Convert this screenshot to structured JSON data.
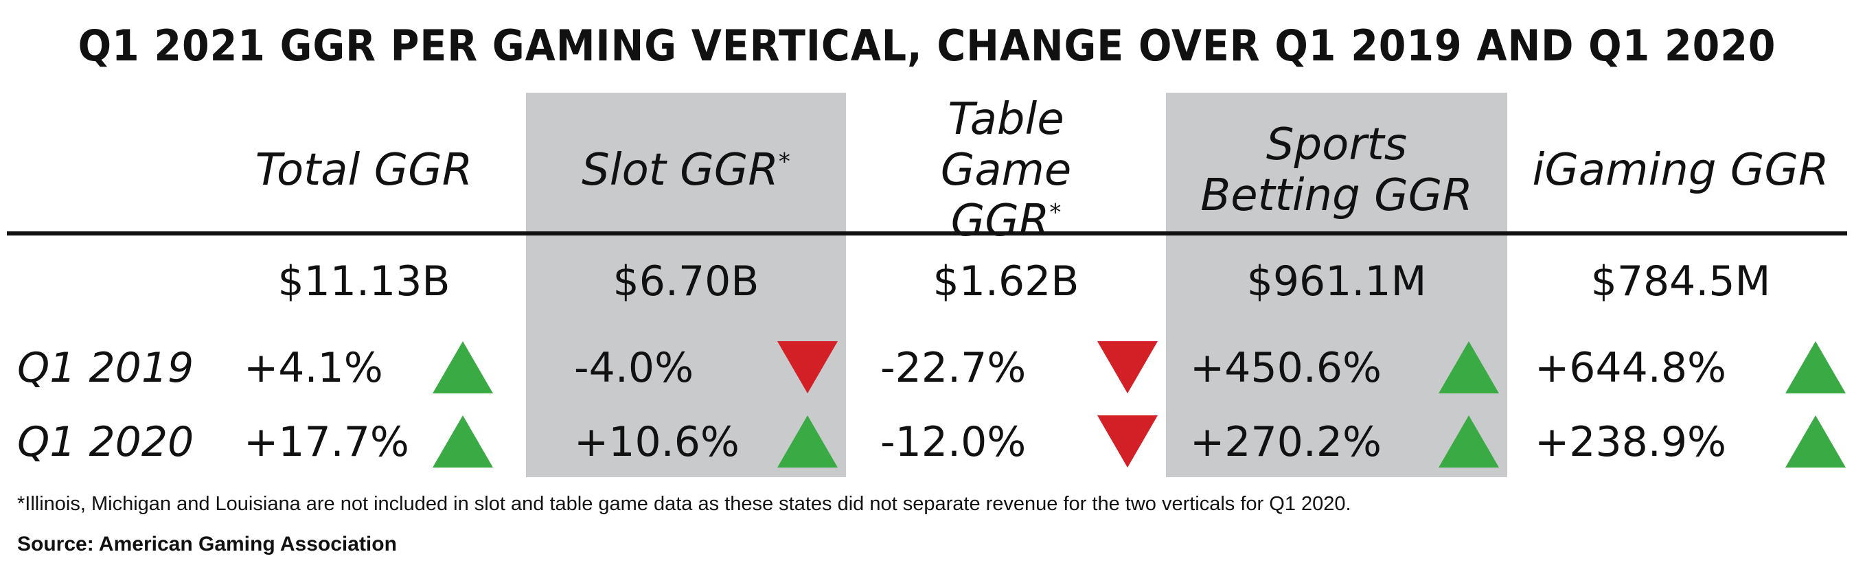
{
  "chart_data": {
    "type": "table",
    "title": "Q1 2021 GGR PER GAMING VERTICAL, CHANGE OVER Q1 2019 AND Q1 2020",
    "columns": [
      {
        "label": "Total GGR",
        "note": "",
        "shaded": false,
        "total": "$11.13B",
        "changes": [
          {
            "text": "+4.1%",
            "value": 4.1,
            "direction": "up"
          },
          {
            "text": "+17.7%",
            "value": 17.7,
            "direction": "up"
          }
        ]
      },
      {
        "label": "Slot GGR",
        "note": "*",
        "shaded": true,
        "total": "$6.70B",
        "changes": [
          {
            "text": "-4.0%",
            "value": -4.0,
            "direction": "down"
          },
          {
            "text": "+10.6%",
            "value": 10.6,
            "direction": "up"
          }
        ]
      },
      {
        "label": "Table Game GGR",
        "note": "*",
        "shaded": false,
        "total": "$1.62B",
        "changes": [
          {
            "text": "-22.7%",
            "value": -22.7,
            "direction": "down"
          },
          {
            "text": "-12.0%",
            "value": -12.0,
            "direction": "down"
          }
        ]
      },
      {
        "label": "Sports Betting GGR",
        "note": "",
        "shaded": true,
        "total": "$961.1M",
        "changes": [
          {
            "text": "+450.6%",
            "value": 450.6,
            "direction": "up"
          },
          {
            "text": "+270.2%",
            "value": 270.2,
            "direction": "up"
          }
        ]
      },
      {
        "label": "iGaming GGR",
        "note": "",
        "shaded": false,
        "total": "$784.5M",
        "changes": [
          {
            "text": "+644.8%",
            "value": 644.8,
            "direction": "up"
          },
          {
            "text": "+238.9%",
            "value": 238.9,
            "direction": "up"
          }
        ]
      }
    ],
    "row_labels": [
      "Q1 2019",
      "Q1 2020"
    ],
    "footnote": "*Illinois, Michigan and Louisiana are not included in slot and table game data as these states did not separate revenue for the two verticals for Q1 2020.",
    "source": "Source: American Gaming Association"
  },
  "colors": {
    "up": "#3aaa44",
    "down": "#d32027",
    "band": "#c9cacc",
    "text": "#111111"
  }
}
